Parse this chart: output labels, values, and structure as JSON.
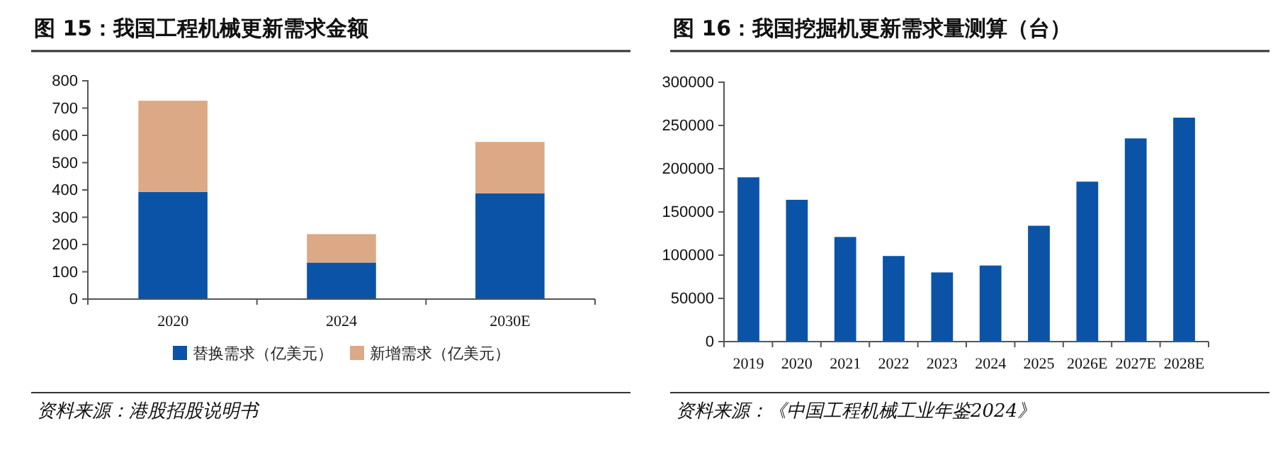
{
  "chart_data": [
    {
      "type": "bar",
      "title": "图 15：我国工程机械更新需求金额",
      "categories": [
        "2020",
        "2024",
        "2030E"
      ],
      "stacked": true,
      "legend": "bottom",
      "grid": false,
      "ylim": [
        0,
        800
      ],
      "yticks": [
        0,
        100,
        200,
        300,
        400,
        500,
        600,
        700,
        800
      ],
      "series": [
        {
          "name": "替换需求（亿美元）",
          "color": "#0b53a6",
          "values": [
            393,
            134,
            388
          ]
        },
        {
          "name": "新增需求（亿美元）",
          "color": "#dba985",
          "values": [
            334,
            104,
            188
          ]
        }
      ],
      "annotations": [
        "资料来源：港股招股说明书"
      ]
    },
    {
      "type": "bar",
      "title": "图 16：我国挖掘机更新需求量测算（台）",
      "categories": [
        "2019",
        "2020",
        "2021",
        "2022",
        "2023",
        "2024",
        "2025",
        "2026E",
        "2027E",
        "2028E"
      ],
      "legend": false,
      "grid": false,
      "ylim": [
        0,
        300000
      ],
      "yticks": [
        0,
        50000,
        100000,
        150000,
        200000,
        250000,
        300000
      ],
      "series": [
        {
          "color": "#0b53a6",
          "values": [
            190000,
            164000,
            121000,
            99000,
            80000,
            88000,
            134000,
            185000,
            235000,
            259000
          ]
        }
      ],
      "annotations": [
        "资料来源：《中国工程机械工业年鉴2024》"
      ]
    }
  ]
}
